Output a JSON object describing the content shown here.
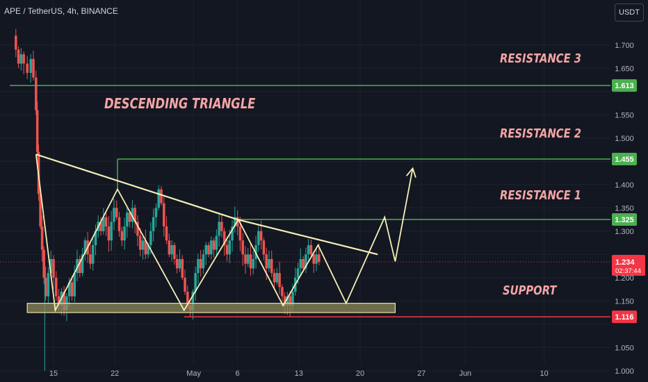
{
  "header": {
    "title": "APE / TetherUS, 4h, BINANCE",
    "currency": "USDT"
  },
  "chart_data": {
    "type": "candlestick",
    "symbol": "APE / TetherUS",
    "interval": "4h",
    "exchange": "BINANCE",
    "ylim": [
      0.99,
      1.73
    ],
    "y_ticks": [
      1.0,
      1.05,
      1.1,
      1.15,
      1.2,
      1.25,
      1.3,
      1.35,
      1.4,
      1.45,
      1.5,
      1.55,
      1.6,
      1.65,
      1.7
    ],
    "y_tick_labels": [
      "1.000",
      "1.050",
      "1.100",
      "1.150",
      "1.200",
      "1.250",
      "1.300",
      "1.350",
      "1.400",
      "1.450",
      "1.500",
      "1.550",
      "1.600",
      "1.650",
      "1.700"
    ],
    "x_ticks": [
      {
        "label": "15",
        "day": 15
      },
      {
        "label": "22",
        "day": 22
      },
      {
        "label": "May",
        "day": 31
      },
      {
        "label": "6",
        "day": 36
      },
      {
        "label": "13",
        "day": 43
      },
      {
        "label": "20",
        "day": 50
      },
      {
        "label": "27",
        "day": 57
      },
      {
        "label": "Jun",
        "day": 62
      },
      {
        "label": "10",
        "day": 71
      }
    ],
    "series_points": [
      [
        10.3,
        1.72
      ],
      [
        10.7,
        1.69
      ],
      [
        11.0,
        1.66
      ],
      [
        11.3,
        1.68
      ],
      [
        11.6,
        1.66
      ],
      [
        12.0,
        1.64
      ],
      [
        12.4,
        1.67
      ],
      [
        12.7,
        1.63
      ],
      [
        13.0,
        1.56
      ],
      [
        13.15,
        1.47
      ],
      [
        13.3,
        1.38
      ],
      [
        13.5,
        1.31
      ],
      [
        13.7,
        1.26
      ],
      [
        13.9,
        1.2
      ],
      [
        14.1,
        1.16
      ],
      [
        14.4,
        1.21
      ],
      [
        14.7,
        1.24
      ],
      [
        15.0,
        1.2
      ],
      [
        15.3,
        1.16
      ],
      [
        15.6,
        1.14
      ],
      [
        15.9,
        1.17
      ],
      [
        16.2,
        1.13
      ],
      [
        16.5,
        1.16
      ],
      [
        16.8,
        1.19
      ],
      [
        17.1,
        1.16
      ],
      [
        17.4,
        1.21
      ],
      [
        17.7,
        1.24
      ],
      [
        18.0,
        1.21
      ],
      [
        18.3,
        1.25
      ],
      [
        18.6,
        1.28
      ],
      [
        18.9,
        1.25
      ],
      [
        19.2,
        1.23
      ],
      [
        19.5,
        1.27
      ],
      [
        19.8,
        1.3
      ],
      [
        20.1,
        1.32
      ],
      [
        20.4,
        1.3
      ],
      [
        20.7,
        1.33
      ],
      [
        21.0,
        1.31
      ],
      [
        21.3,
        1.28
      ],
      [
        21.6,
        1.32
      ],
      [
        21.9,
        1.35
      ],
      [
        22.2,
        1.33
      ],
      [
        22.5,
        1.3
      ],
      [
        22.8,
        1.28
      ],
      [
        23.1,
        1.31
      ],
      [
        23.4,
        1.34
      ],
      [
        23.7,
        1.32
      ],
      [
        24.0,
        1.35
      ],
      [
        24.3,
        1.32
      ],
      [
        24.6,
        1.29
      ],
      [
        24.9,
        1.26
      ],
      [
        25.2,
        1.28
      ],
      [
        25.5,
        1.25
      ],
      [
        25.8,
        1.27
      ],
      [
        26.1,
        1.3
      ],
      [
        26.4,
        1.33
      ],
      [
        26.7,
        1.35
      ],
      [
        27.0,
        1.39
      ],
      [
        27.3,
        1.36
      ],
      [
        27.6,
        1.31
      ],
      [
        27.9,
        1.28
      ],
      [
        28.2,
        1.25
      ],
      [
        28.5,
        1.27
      ],
      [
        28.8,
        1.24
      ],
      [
        29.1,
        1.22
      ],
      [
        29.4,
        1.24
      ],
      [
        29.7,
        1.2
      ],
      [
        30.0,
        1.17
      ],
      [
        30.3,
        1.14
      ],
      [
        30.6,
        1.13
      ],
      [
        30.9,
        1.17
      ],
      [
        31.2,
        1.21
      ],
      [
        31.5,
        1.24
      ],
      [
        31.8,
        1.22
      ],
      [
        32.1,
        1.25
      ],
      [
        32.4,
        1.27
      ],
      [
        32.7,
        1.25
      ],
      [
        33.0,
        1.28
      ],
      [
        33.3,
        1.26
      ],
      [
        33.6,
        1.29
      ],
      [
        33.9,
        1.32
      ],
      [
        34.2,
        1.3
      ],
      [
        34.5,
        1.27
      ],
      [
        34.8,
        1.25
      ],
      [
        35.1,
        1.28
      ],
      [
        35.4,
        1.31
      ],
      [
        35.7,
        1.33
      ],
      [
        36.0,
        1.31
      ],
      [
        36.3,
        1.28
      ],
      [
        36.6,
        1.25
      ],
      [
        36.9,
        1.23
      ],
      [
        37.2,
        1.25
      ],
      [
        37.5,
        1.22
      ],
      [
        37.8,
        1.24
      ],
      [
        38.1,
        1.27
      ],
      [
        38.4,
        1.3
      ],
      [
        38.7,
        1.28
      ],
      [
        39.0,
        1.25
      ],
      [
        39.3,
        1.22
      ],
      [
        39.6,
        1.24
      ],
      [
        39.9,
        1.21
      ],
      [
        40.2,
        1.19
      ],
      [
        40.5,
        1.21
      ],
      [
        40.8,
        1.18
      ],
      [
        41.1,
        1.16
      ],
      [
        41.4,
        1.14
      ],
      [
        41.7,
        1.16
      ],
      [
        42.0,
        1.14
      ],
      [
        42.3,
        1.17
      ],
      [
        42.6,
        1.2
      ],
      [
        42.9,
        1.22
      ],
      [
        43.2,
        1.24
      ],
      [
        43.5,
        1.22
      ],
      [
        43.8,
        1.25
      ],
      [
        44.1,
        1.27
      ],
      [
        44.4,
        1.25
      ],
      [
        44.7,
        1.23
      ],
      [
        45.0,
        1.25
      ],
      [
        45.3,
        1.234
      ]
    ],
    "overlay": {
      "descending_triangle_top": [
        [
          13.0,
          1.465
        ],
        [
          36.0,
          1.325
        ],
        [
          52.0,
          1.25
        ]
      ],
      "triangle_zigzag": [
        [
          13.0,
          1.465
        ],
        [
          15.2,
          1.13
        ],
        [
          22.3,
          1.39
        ],
        [
          29.9,
          1.13
        ],
        [
          36.1,
          1.325
        ],
        [
          41.2,
          1.14
        ],
        [
          45.2,
          1.27
        ],
        [
          48.4,
          1.145
        ],
        [
          52.8,
          1.33
        ],
        [
          54.0,
          1.235
        ],
        [
          56.0,
          1.435
        ]
      ],
      "support_zone": [
        1.125,
        1.145
      ]
    },
    "horizontal_levels": [
      {
        "name": "RESISTANCE 3",
        "value": 1.613,
        "label": "1.613",
        "color": "#4caf50"
      },
      {
        "name": "RESISTANCE 2",
        "value": 1.455,
        "label": "1.455",
        "color": "#4caf50"
      },
      {
        "name": "RESISTANCE 1",
        "value": 1.325,
        "label": "1.325",
        "color": "#4caf50"
      },
      {
        "name": "SUPPORT",
        "value": 1.116,
        "label": "1.116",
        "color": "#f23645"
      }
    ],
    "current_price": {
      "value": 1.234,
      "label": "1.234",
      "countdown": "02:37:44",
      "color": "#f23645"
    },
    "annotations": {
      "title": "DESCENDING TRIANGLE",
      "resistance_3": "RESISTANCE 3",
      "resistance_2": "RESISTANCE 2",
      "resistance_1": "RESISTANCE 1",
      "support": "SUPPORT"
    },
    "colors": {
      "background": "#131722",
      "up": "#26a69a",
      "down": "#ef5350",
      "drawing": "#f5f0b5",
      "annotation": "#f4a5a5",
      "support_zone_fill": "#8f8a5a"
    }
  }
}
